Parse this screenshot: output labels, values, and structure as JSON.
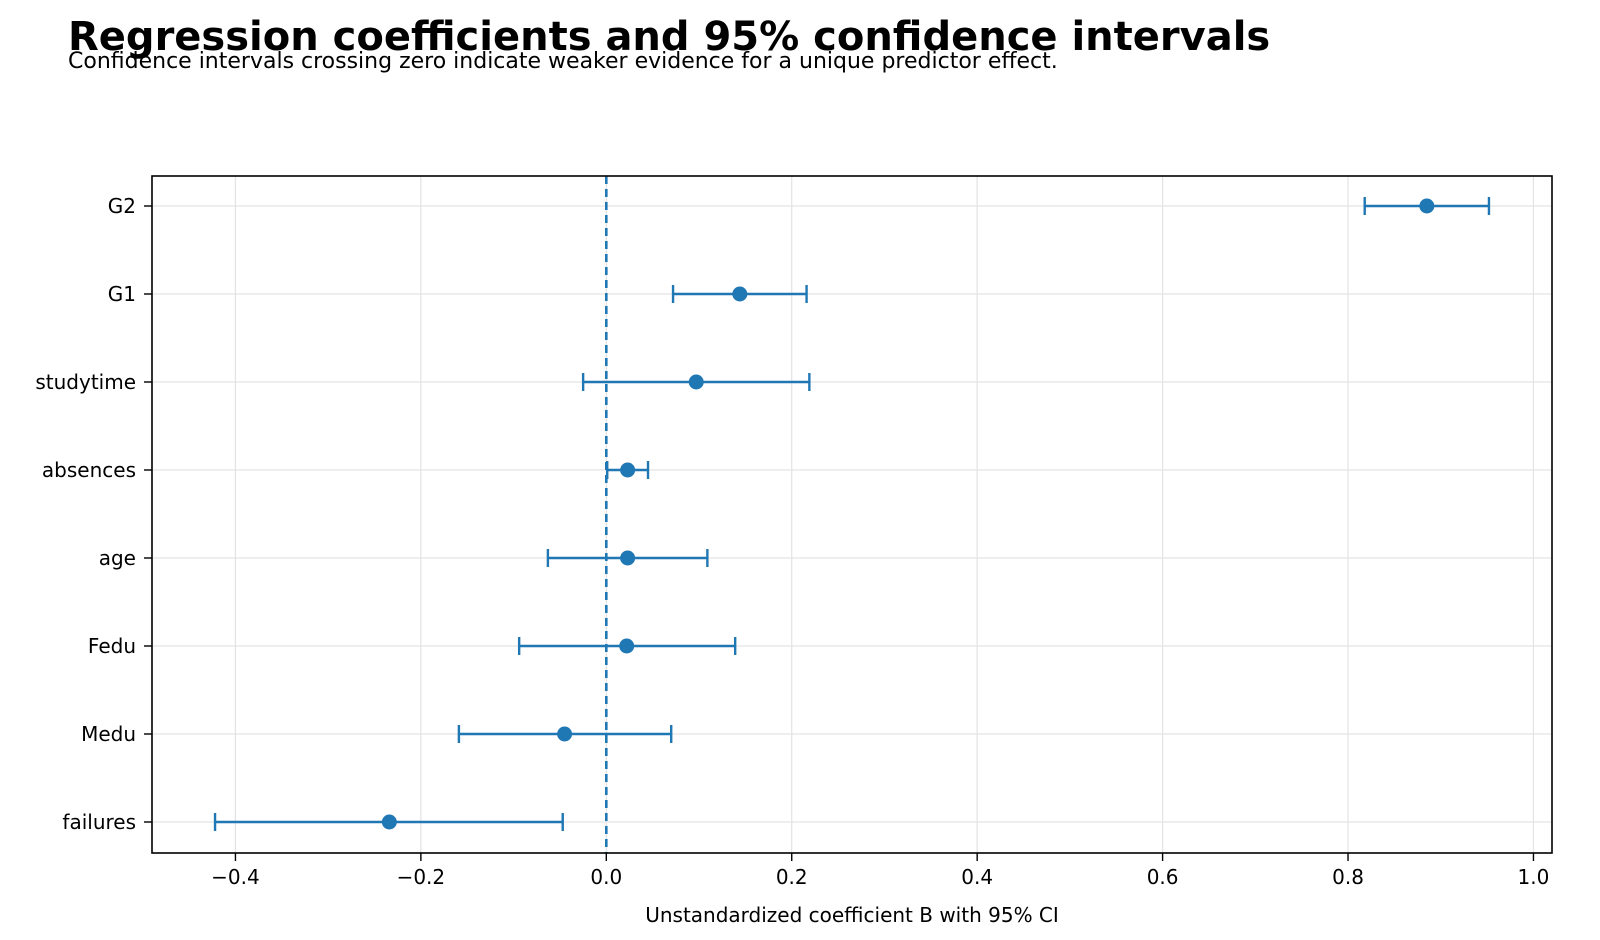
{
  "chart_data": {
    "type": "scatter",
    "subtype": "coefficient-plot-with-confidence-intervals",
    "title": "Regression coefficients and 95% confidence intervals",
    "subtitle": "Confidence intervals crossing zero indicate weaker evidence for a unique predictor effect.",
    "xlabel": "Unstandardized coefficient B with 95% CI",
    "ylabel": "",
    "xlim": [
      -0.49,
      1.02
    ],
    "xticks": [
      -0.4,
      -0.2,
      0.0,
      0.2,
      0.4,
      0.6,
      0.8,
      1.0
    ],
    "xtick_labels": [
      "−0.4",
      "−0.2",
      "0.0",
      "0.2",
      "0.4",
      "0.6",
      "0.8",
      "1.0"
    ],
    "grid": true,
    "reference_line": {
      "x": 0.0,
      "style": "dashed"
    },
    "color": "#1f77b4",
    "predictors": [
      {
        "name": "G2",
        "estimate": 0.885,
        "ci_low": 0.818,
        "ci_high": 0.952
      },
      {
        "name": "G1",
        "estimate": 0.144,
        "ci_low": 0.072,
        "ci_high": 0.216
      },
      {
        "name": "studytime",
        "estimate": 0.097,
        "ci_low": -0.025,
        "ci_high": 0.219
      },
      {
        "name": "absences",
        "estimate": 0.023,
        "ci_low": 0.001,
        "ci_high": 0.045
      },
      {
        "name": "age",
        "estimate": 0.023,
        "ci_low": -0.063,
        "ci_high": 0.109
      },
      {
        "name": "Fedu",
        "estimate": 0.022,
        "ci_low": -0.094,
        "ci_high": 0.139
      },
      {
        "name": "Medu",
        "estimate": -0.045,
        "ci_low": -0.159,
        "ci_high": 0.07
      },
      {
        "name": "failures",
        "estimate": -0.234,
        "ci_low": -0.422,
        "ci_high": -0.047
      }
    ]
  }
}
